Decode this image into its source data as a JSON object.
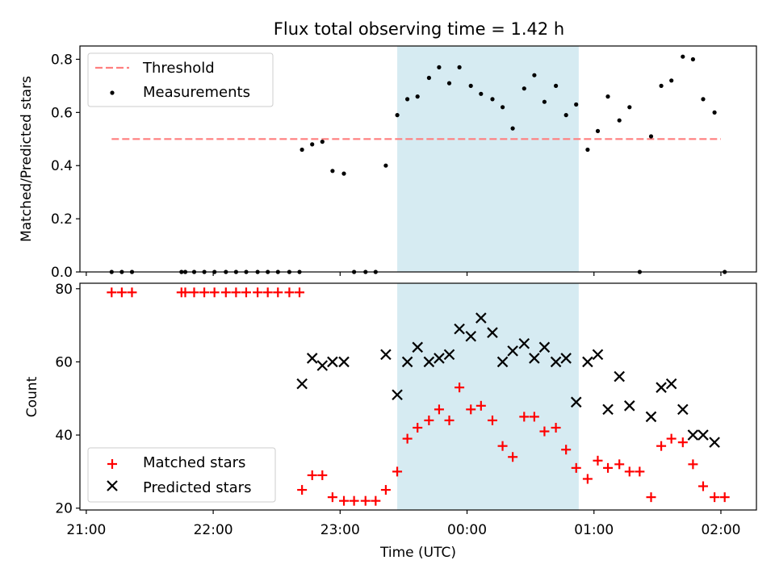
{
  "chart_data": [
    {
      "type": "scatter",
      "title": "Flux total observing time = 1.42 h",
      "xlabel": "",
      "ylabel": "Matched/Predicted stars",
      "ylim": [
        0,
        0.85
      ],
      "xlim_hours": [
        20.95,
        26.28
      ],
      "y_ticks": [
        "0.0",
        "0.2",
        "0.4",
        "0.6",
        "0.8"
      ],
      "highlight_span_hours": [
        23.45,
        24.88
      ],
      "highlight_color": "#add8e6",
      "threshold": {
        "name": "Threshold",
        "value": 0.5,
        "x_range_hours": [
          21.2,
          26.0
        ],
        "color": "#ff7f7f",
        "style": "dashed"
      },
      "legend": {
        "position": "top-left",
        "entries": [
          "Threshold",
          "Measurements"
        ]
      },
      "series": [
        {
          "name": "Measurements",
          "marker": "dot",
          "color": "#000000",
          "x_hours": [
            21.2,
            21.28,
            21.36,
            21.75,
            21.78,
            21.85,
            21.93,
            22.01,
            22.1,
            22.18,
            22.26,
            22.35,
            22.43,
            22.51,
            22.6,
            22.68,
            22.7,
            22.78,
            22.86,
            22.94,
            23.03,
            23.11,
            23.2,
            23.28,
            23.36,
            23.45,
            23.53,
            23.61,
            23.7,
            23.78,
            23.86,
            23.94,
            24.03,
            24.11,
            24.2,
            24.28,
            24.36,
            24.45,
            24.53,
            24.61,
            24.7,
            24.78,
            24.86,
            24.95,
            25.03,
            25.11,
            25.2,
            25.28,
            25.36,
            25.45,
            25.53,
            25.61,
            25.7,
            25.78,
            25.86,
            25.95,
            26.03
          ],
          "y": [
            0,
            0,
            0,
            0,
            0,
            0,
            0,
            0,
            0,
            0,
            0,
            0,
            0,
            0,
            0,
            0,
            0.46,
            0.48,
            0.49,
            0.38,
            0.37,
            0,
            0,
            0,
            0.4,
            0.59,
            0.65,
            0.66,
            0.73,
            0.77,
            0.71,
            0.77,
            0.7,
            0.67,
            0.65,
            0.62,
            0.54,
            0.69,
            0.74,
            0.64,
            0.7,
            0.59,
            0.63,
            0.46,
            0.53,
            0.66,
            0.57,
            0.62,
            0,
            0.51,
            0.7,
            0.72,
            0.81,
            0.8,
            0.65,
            0.6,
            0
          ]
        }
      ]
    },
    {
      "type": "scatter",
      "title": "",
      "xlabel": "Time (UTC)",
      "ylabel": "Count",
      "ylim": [
        19.5,
        81.5
      ],
      "xlim_hours": [
        20.95,
        26.28
      ],
      "y_ticks": [
        "20",
        "40",
        "60",
        "80"
      ],
      "x_ticks": [
        "21:00",
        "22:00",
        "23:00",
        "00:00",
        "01:00",
        "02:00"
      ],
      "x_tick_hours": [
        21,
        22,
        23,
        24,
        25,
        26
      ],
      "highlight_span_hours": [
        23.45,
        24.88
      ],
      "highlight_color": "#add8e6",
      "legend": {
        "position": "bottom-left",
        "entries": [
          "Matched stars",
          "Predicted stars"
        ]
      },
      "series": [
        {
          "name": "Matched stars",
          "marker": "plus",
          "color": "#ff0000",
          "x_hours": [
            21.2,
            21.28,
            21.36,
            21.75,
            21.78,
            21.85,
            21.93,
            22.01,
            22.1,
            22.18,
            22.26,
            22.35,
            22.43,
            22.51,
            22.6,
            22.68,
            22.7,
            22.78,
            22.86,
            22.94,
            23.03,
            23.11,
            23.2,
            23.28,
            23.36,
            23.45,
            23.53,
            23.61,
            23.7,
            23.78,
            23.86,
            23.94,
            24.03,
            24.11,
            24.2,
            24.28,
            24.36,
            24.45,
            24.53,
            24.61,
            24.7,
            24.78,
            24.86,
            24.95,
            25.03,
            25.11,
            25.2,
            25.28,
            25.36,
            25.45,
            25.53,
            25.61,
            25.7,
            25.78,
            25.86,
            25.95,
            26.03
          ],
          "y": [
            79,
            79,
            79,
            79,
            79,
            79,
            79,
            79,
            79,
            79,
            79,
            79,
            79,
            79,
            79,
            79,
            25,
            29,
            29,
            23,
            22,
            22,
            22,
            22,
            25,
            30,
            39,
            42,
            44,
            47,
            44,
            53,
            47,
            48,
            44,
            37,
            34,
            45,
            45,
            41,
            42,
            36,
            31,
            28,
            33,
            31,
            32,
            30,
            30,
            23,
            37,
            39,
            38,
            32,
            26,
            23,
            23
          ]
        },
        {
          "name": "Predicted stars",
          "marker": "x",
          "color": "#000000",
          "x_hours": [
            22.7,
            22.78,
            22.86,
            22.94,
            23.03,
            23.36,
            23.45,
            23.53,
            23.61,
            23.7,
            23.78,
            23.86,
            23.94,
            24.03,
            24.11,
            24.2,
            24.28,
            24.36,
            24.45,
            24.53,
            24.61,
            24.7,
            24.78,
            24.86,
            24.95,
            25.03,
            25.11,
            25.2,
            25.28,
            25.45,
            25.53,
            25.61,
            25.7,
            25.78,
            25.86,
            25.95
          ],
          "y": [
            54,
            61,
            59,
            60,
            60,
            62,
            51,
            60,
            64,
            60,
            61,
            62,
            69,
            67,
            72,
            68,
            60,
            63,
            65,
            61,
            64,
            60,
            61,
            49,
            60,
            62,
            47,
            56,
            48,
            45,
            53,
            54,
            47,
            40,
            40,
            38
          ]
        }
      ]
    }
  ]
}
